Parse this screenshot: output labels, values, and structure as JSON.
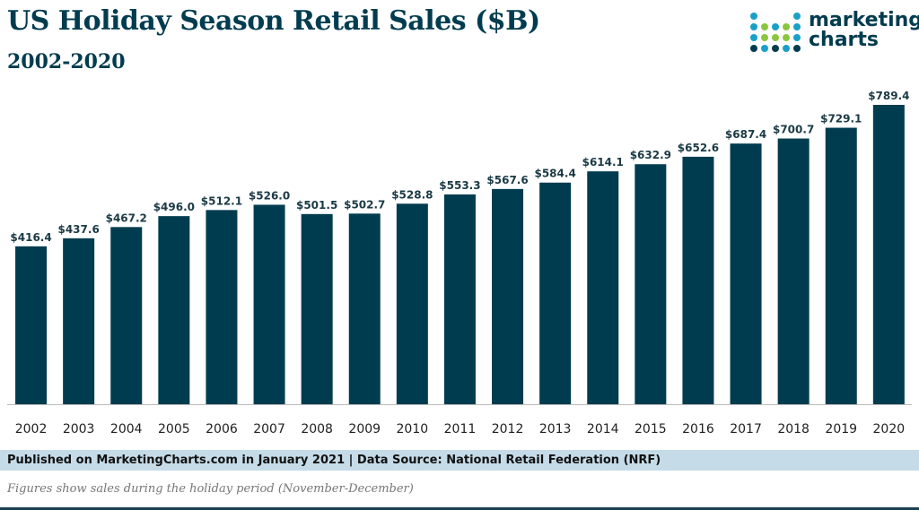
{
  "header": {
    "title": "US Holiday Season Retail Sales ($B)",
    "subtitle": "2002-2020"
  },
  "logo": {
    "line1": "marketing",
    "line2": "charts",
    "icon": "dot-grid-logo-icon"
  },
  "chart_data": {
    "type": "bar",
    "title": "US Holiday Season Retail Sales ($B)",
    "subtitle": "2002-2020",
    "xlabel": "",
    "ylabel": "",
    "ylim": [
      0,
      789.4
    ],
    "grid": false,
    "bar_color": "#003c4f",
    "categories": [
      "2002",
      "2003",
      "2004",
      "2005",
      "2006",
      "2007",
      "2008",
      "2009",
      "2010",
      "2011",
      "2012",
      "2013",
      "2014",
      "2015",
      "2016",
      "2017",
      "2018",
      "2019",
      "2020"
    ],
    "values": [
      416.4,
      437.6,
      467.2,
      496.0,
      512.1,
      526.0,
      501.5,
      502.7,
      528.8,
      553.3,
      567.6,
      584.4,
      614.1,
      632.9,
      652.6,
      687.4,
      700.7,
      729.1,
      789.4
    ],
    "labels": [
      "$416.4",
      "$437.6",
      "$467.2",
      "$496.0",
      "$512.1",
      "$526.0",
      "$501.5",
      "$502.7",
      "$528.8",
      "$553.3",
      "$567.6",
      "$584.4",
      "$614.1",
      "$632.9",
      "$652.6",
      "$687.4",
      "$700.7",
      "$729.1",
      "$789.4"
    ]
  },
  "footer": {
    "source": "Published on MarketingCharts.com in January 2021 | Data Source: National Retail Federation (NRF)",
    "note": "Figures show sales during the holiday period (November-December)"
  },
  "colors": {
    "brand": "#003c4f",
    "footer_bg": "#c6dbe8",
    "logo_dots": [
      "#1aa0c8",
      "#8cc63f",
      "#003c4f"
    ]
  }
}
